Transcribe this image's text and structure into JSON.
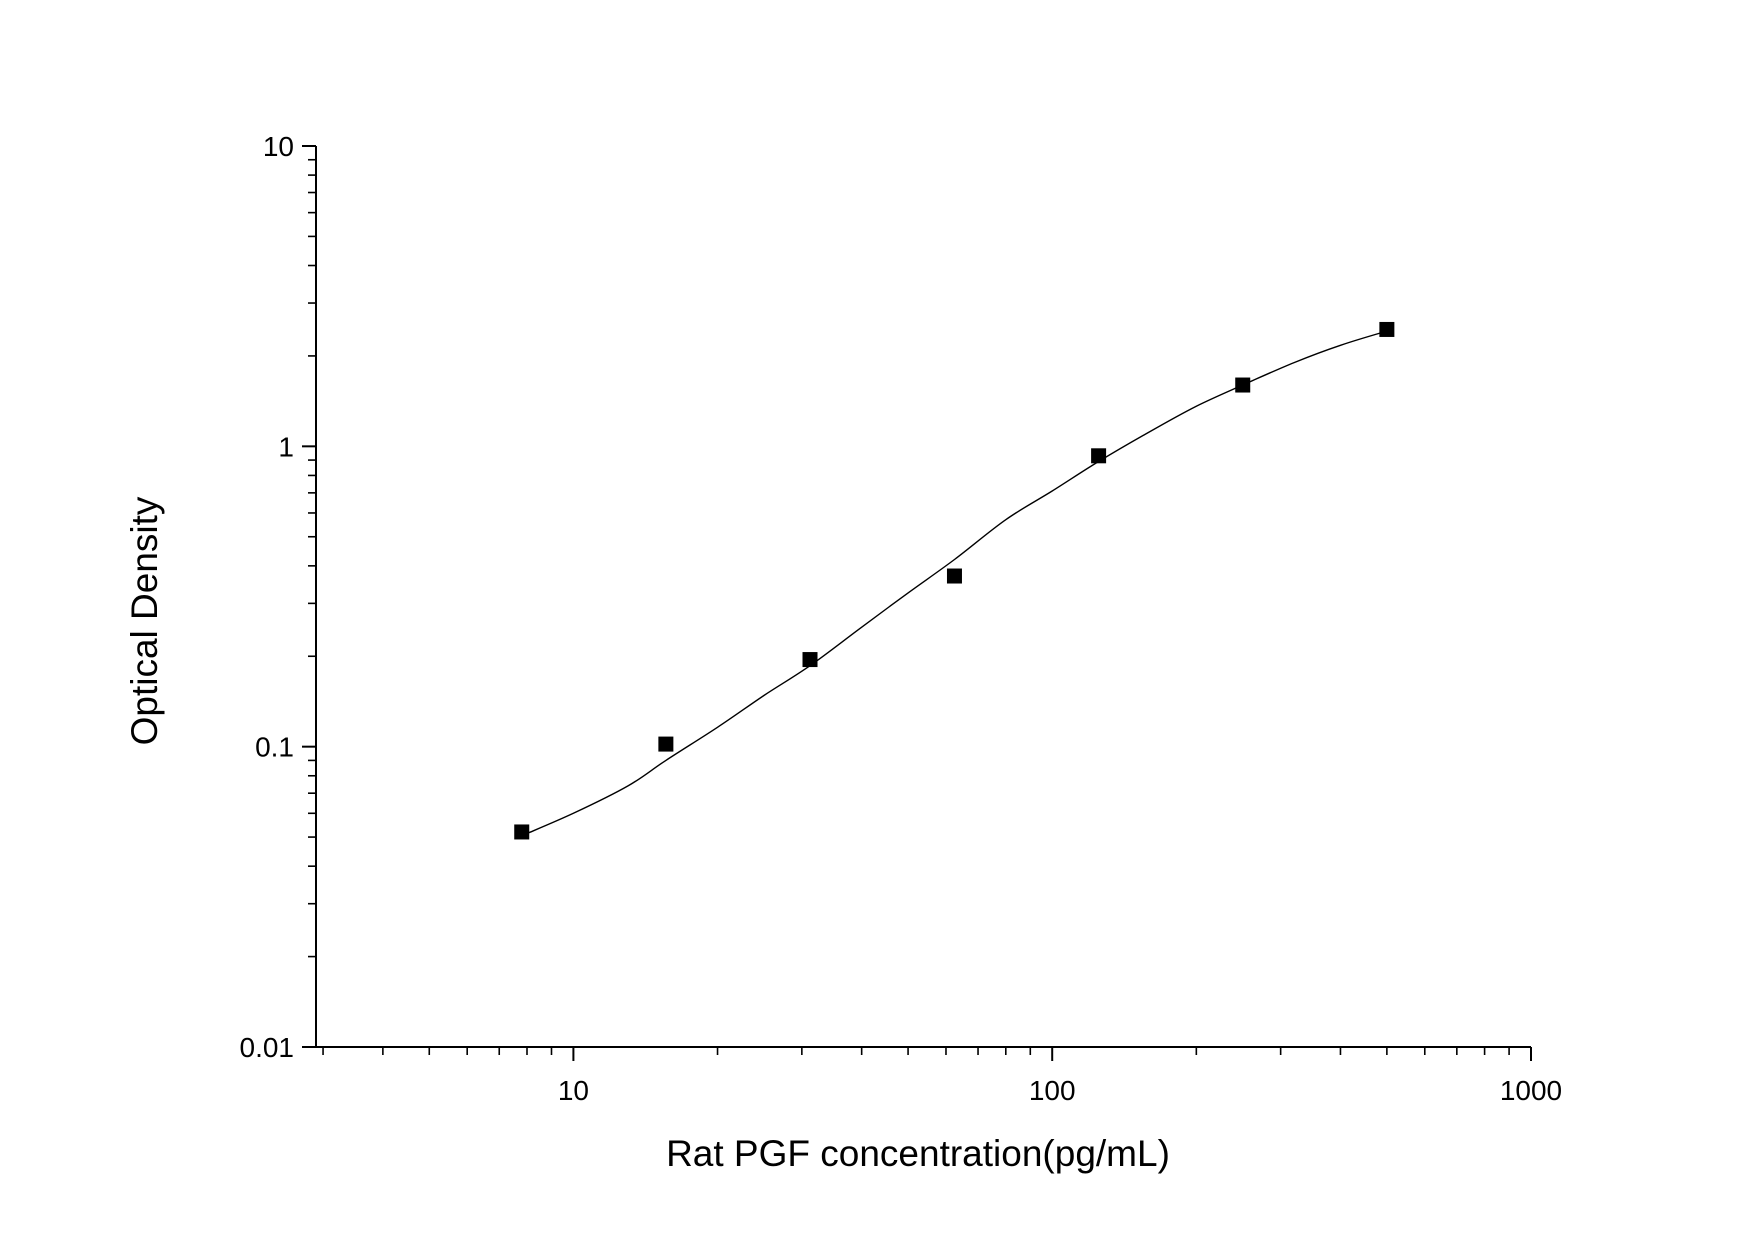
{
  "chart_data": {
    "type": "scatter",
    "title": "",
    "xlabel": "Rat PGF concentration(pg/mL)",
    "ylabel": "Optical Density",
    "x_scale": "log",
    "y_scale": "log",
    "xlim": [
      2.9,
      1000
    ],
    "ylim": [
      0.01,
      10
    ],
    "x_ticks": [
      10,
      100,
      1000
    ],
    "x_tick_labels": [
      "10",
      "100",
      "1000"
    ],
    "y_ticks": [
      0.01,
      0.1,
      1,
      10
    ],
    "y_tick_labels": [
      "0.01",
      "0.1",
      "1",
      "10"
    ],
    "grid": false,
    "legend": "none",
    "marker_color": "#000000",
    "line_color": "#000000",
    "series": [
      {
        "points": [
          {
            "x": 7.8,
            "y": 0.052
          },
          {
            "x": 15.6,
            "y": 0.102
          },
          {
            "x": 31.2,
            "y": 0.195
          },
          {
            "x": 62.5,
            "y": 0.37
          },
          {
            "x": 125,
            "y": 0.93
          },
          {
            "x": 250,
            "y": 1.6
          },
          {
            "x": 500,
            "y": 2.45
          }
        ]
      }
    ],
    "fit_curve": [
      {
        "x": 7.8,
        "y": 0.0505
      },
      {
        "x": 10,
        "y": 0.06
      },
      {
        "x": 13,
        "y": 0.074
      },
      {
        "x": 15.6,
        "y": 0.09
      },
      {
        "x": 20,
        "y": 0.116
      },
      {
        "x": 25,
        "y": 0.148
      },
      {
        "x": 31.2,
        "y": 0.186
      },
      {
        "x": 40,
        "y": 0.25
      },
      {
        "x": 50,
        "y": 0.325
      },
      {
        "x": 62.5,
        "y": 0.42
      },
      {
        "x": 80,
        "y": 0.57
      },
      {
        "x": 100,
        "y": 0.71
      },
      {
        "x": 125,
        "y": 0.89
      },
      {
        "x": 160,
        "y": 1.12
      },
      {
        "x": 200,
        "y": 1.36
      },
      {
        "x": 250,
        "y": 1.6
      },
      {
        "x": 320,
        "y": 1.9
      },
      {
        "x": 400,
        "y": 2.17
      },
      {
        "x": 500,
        "y": 2.42
      }
    ]
  }
}
